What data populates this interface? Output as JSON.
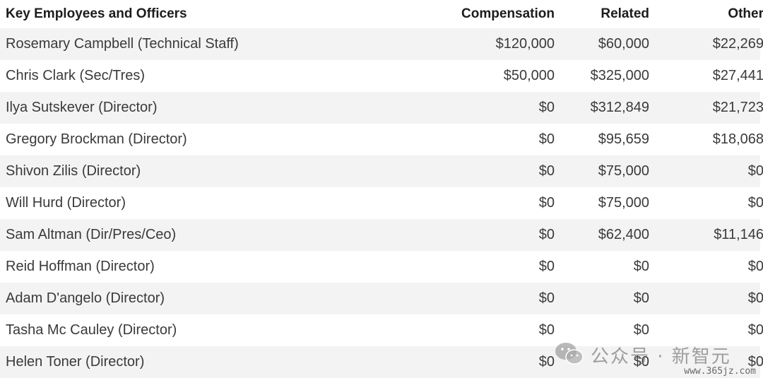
{
  "table": {
    "headers": {
      "name": "Key Employees and Officers",
      "compensation": "Compensation",
      "related": "Related",
      "other": "Other"
    },
    "rows": [
      {
        "name": "Rosemary Campbell (Technical Staff)",
        "compensation": "$120,000",
        "related": "$60,000",
        "other": "$22,269"
      },
      {
        "name": "Chris Clark (Sec/Tres)",
        "compensation": "$50,000",
        "related": "$325,000",
        "other": "$27,441"
      },
      {
        "name": "Ilya Sutskever (Director)",
        "compensation": "$0",
        "related": "$312,849",
        "other": "$21,723"
      },
      {
        "name": "Gregory Brockman (Director)",
        "compensation": "$0",
        "related": "$95,659",
        "other": "$18,068"
      },
      {
        "name": "Shivon Zilis (Director)",
        "compensation": "$0",
        "related": "$75,000",
        "other": "$0"
      },
      {
        "name": "Will Hurd (Director)",
        "compensation": "$0",
        "related": "$75,000",
        "other": "$0"
      },
      {
        "name": "Sam Altman (Dir/Pres/Ceo)",
        "compensation": "$0",
        "related": "$62,400",
        "other": "$11,146"
      },
      {
        "name": "Reid Hoffman (Director)",
        "compensation": "$0",
        "related": "$0",
        "other": "$0"
      },
      {
        "name": "Adam D'angelo (Director)",
        "compensation": "$0",
        "related": "$0",
        "other": "$0"
      },
      {
        "name": "Tasha Mc Cauley (Director)",
        "compensation": "$0",
        "related": "$0",
        "other": "$0"
      },
      {
        "name": "Helen Toner (Director)",
        "compensation": "$0",
        "related": "$0",
        "other": "$0"
      }
    ]
  },
  "watermark": {
    "text": "公众号 · 新智元",
    "url": "www.365jz.com",
    "icon": "wechat-logo-icon"
  },
  "colors": {
    "row_shade": "#f3f3f3",
    "text": "#3a3a3a",
    "header_text": "#1c1c1c"
  }
}
